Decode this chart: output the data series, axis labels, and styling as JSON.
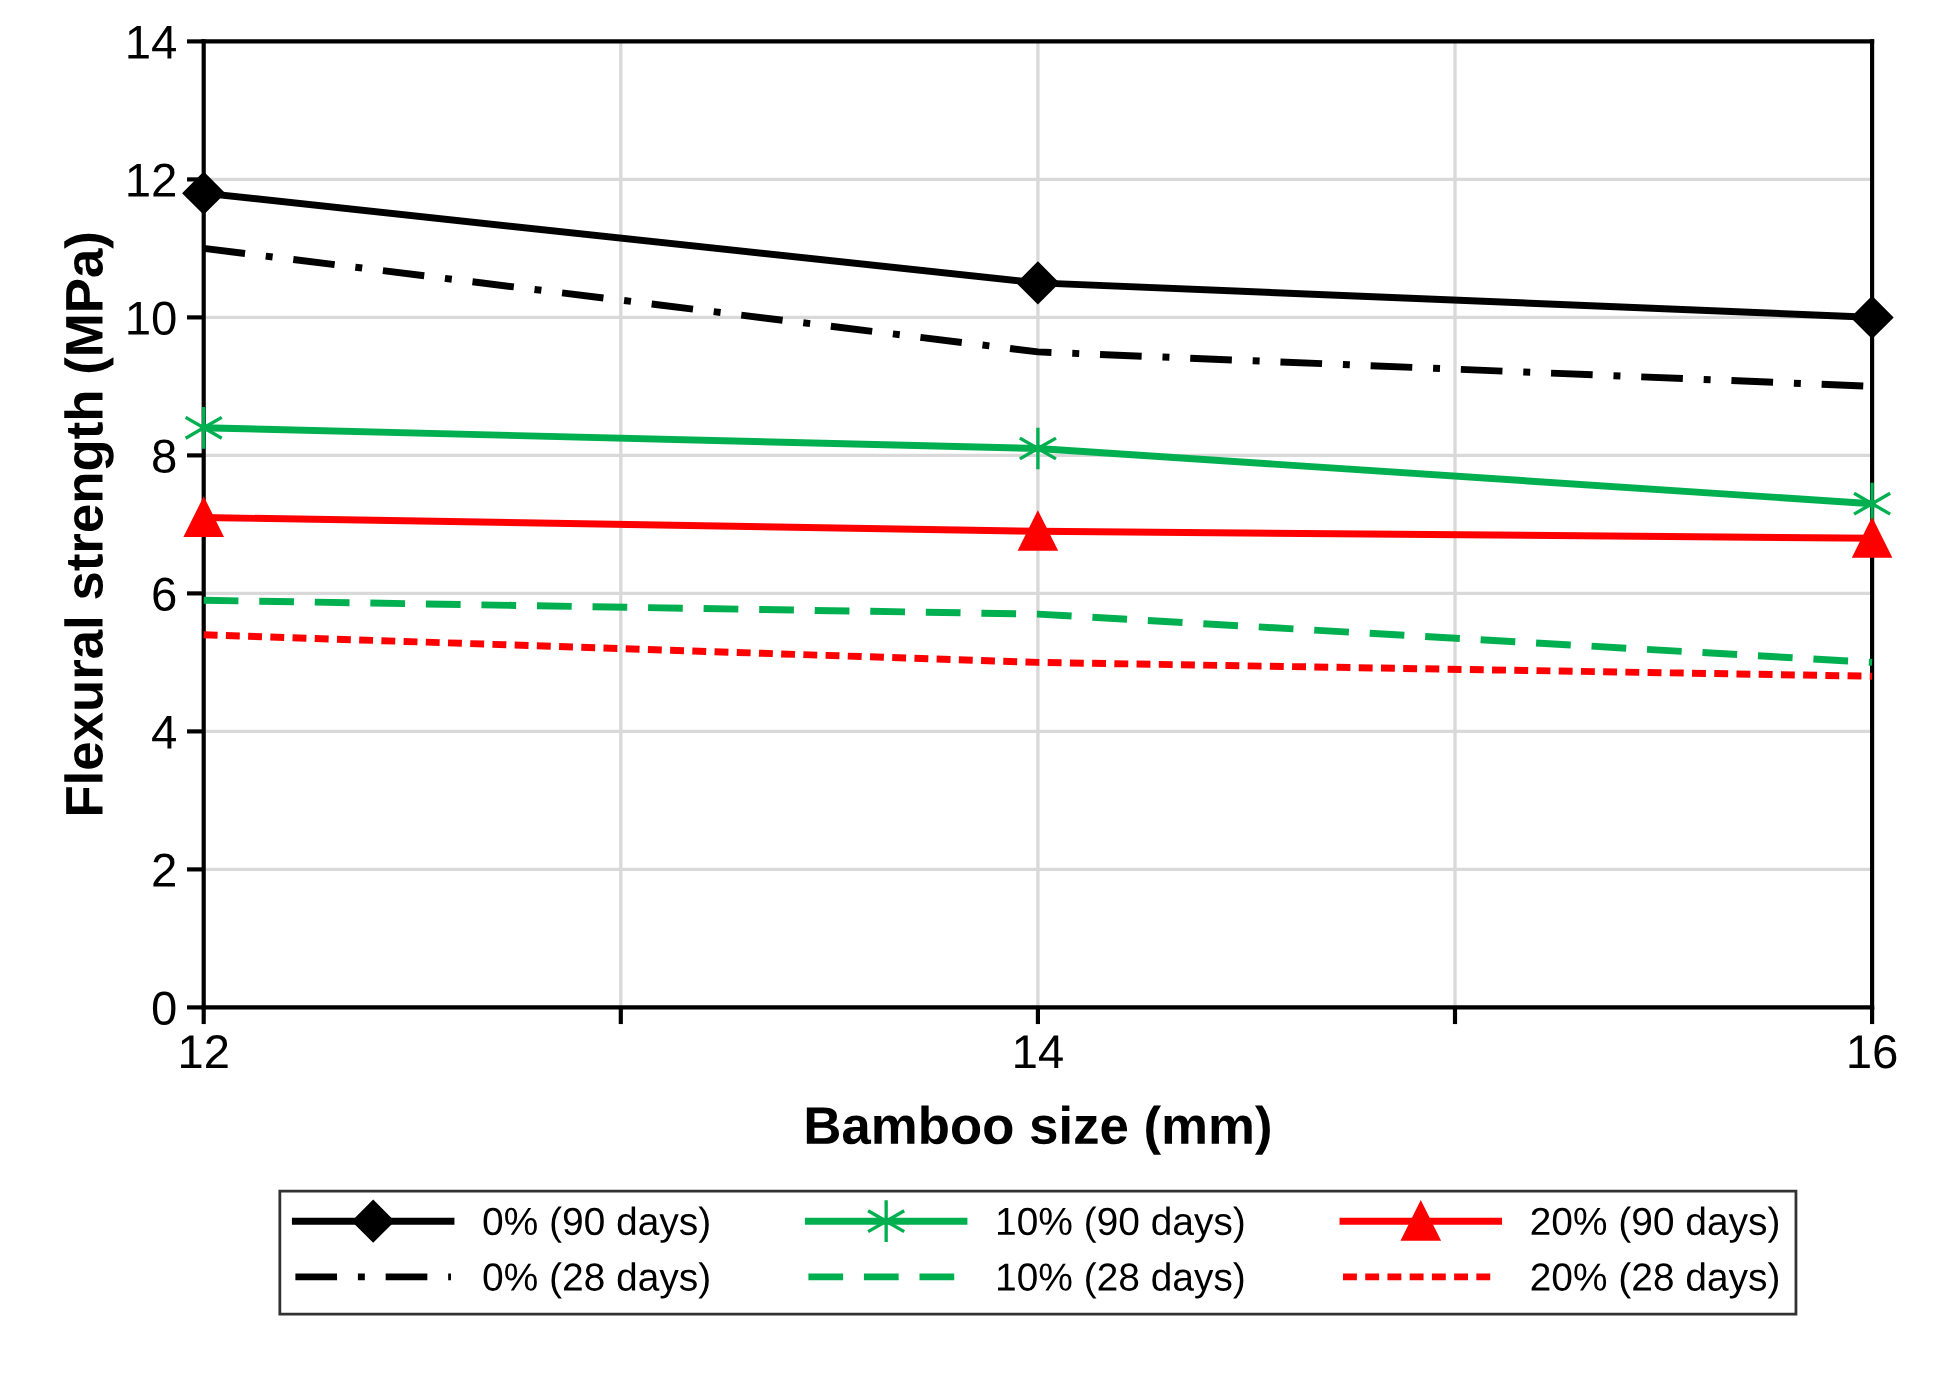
{
  "chart_data": {
    "type": "line",
    "xlabel": "Bamboo size (mm)",
    "ylabel": "Flexural strength (MPa)",
    "x": [
      12,
      14,
      16
    ],
    "series": [
      {
        "name": "0% (90 days)",
        "color": "#000000",
        "marker": "diamond",
        "line_style": "solid",
        "values": [
          11.8,
          10.5,
          10.0
        ]
      },
      {
        "name": "0% (28 days)",
        "color": "#000000",
        "marker": "none",
        "line_style": "dashdot",
        "values": [
          11.0,
          9.5,
          9.0
        ]
      },
      {
        "name": "10% (90 days)",
        "color": "#00b050",
        "marker": "cross",
        "line_style": "solid",
        "values": [
          8.4,
          8.1,
          7.3
        ]
      },
      {
        "name": "10% (28 days)",
        "color": "#00b050",
        "marker": "none",
        "line_style": "dashed",
        "values": [
          5.9,
          5.7,
          5.0
        ]
      },
      {
        "name": "20% (90 days)",
        "color": "#ff0000",
        "marker": "triangle",
        "line_style": "solid",
        "values": [
          7.1,
          6.9,
          6.8
        ]
      },
      {
        "name": "20% (28 days)",
        "color": "#ff0000",
        "marker": "none",
        "line_style": "dotted",
        "values": [
          5.4,
          5.0,
          4.8
        ]
      }
    ],
    "xlim": [
      12,
      16
    ],
    "xticks": [
      12,
      {
        "value": 13,
        "label": null
      },
      14,
      {
        "value": 15,
        "label": null
      },
      16
    ],
    "ylim": [
      0,
      14
    ],
    "yticks": [
      0,
      2,
      4,
      6,
      8,
      10,
      12,
      14
    ],
    "grid": true,
    "legend": "bottom"
  }
}
